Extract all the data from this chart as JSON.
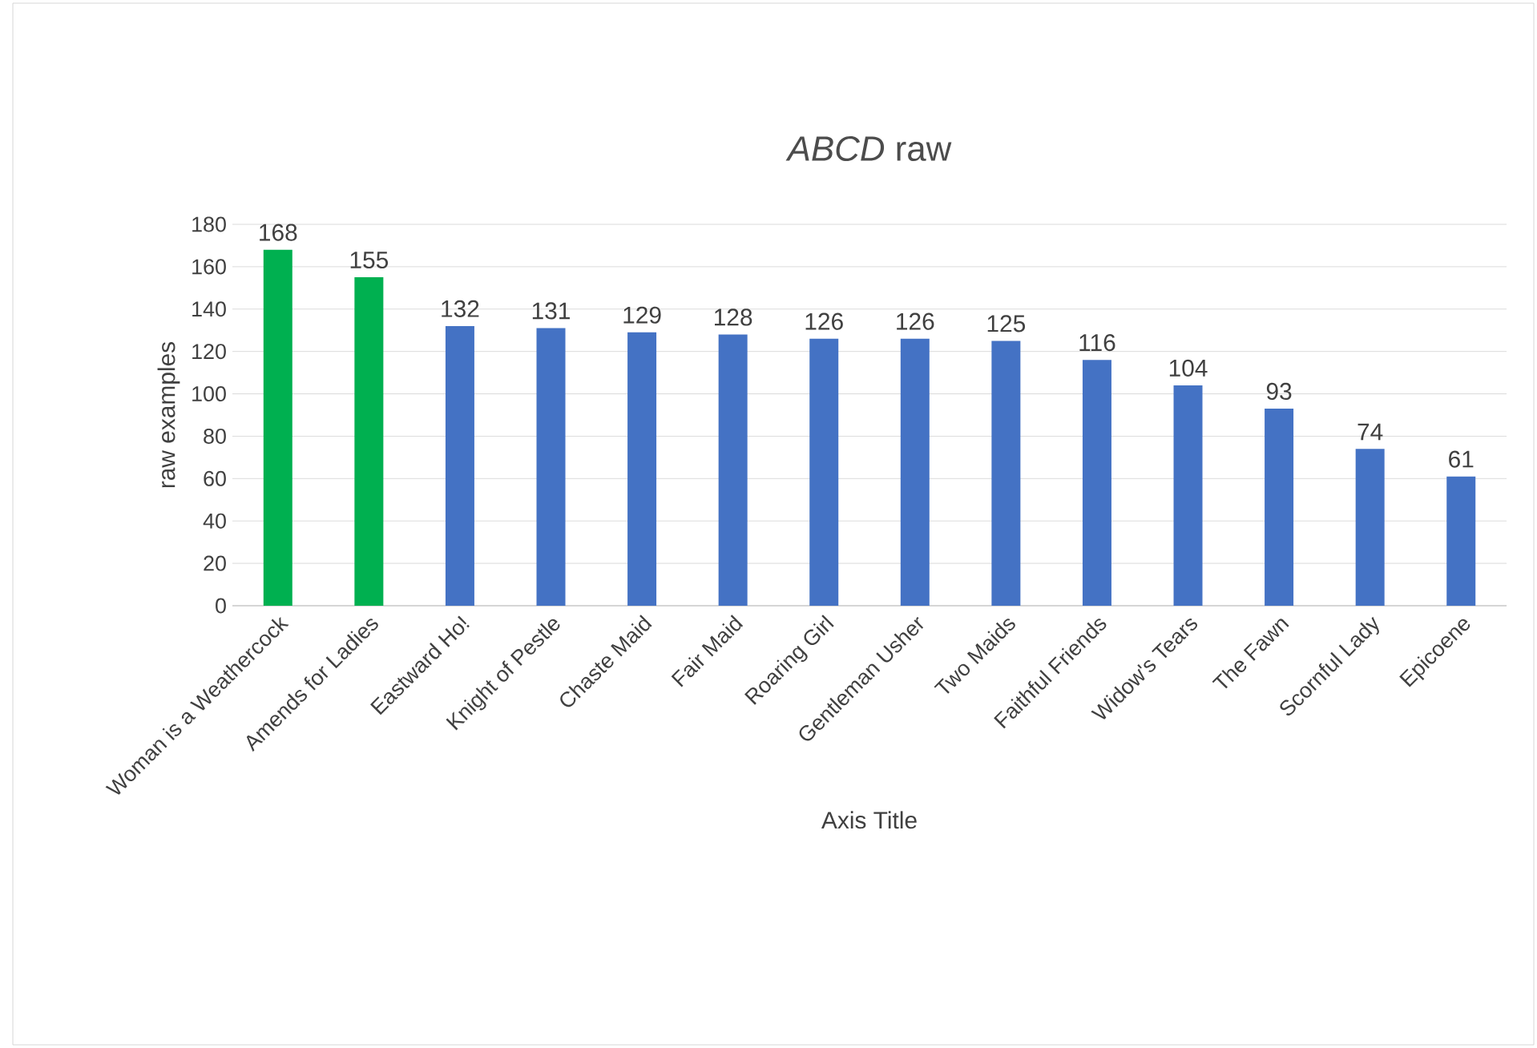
{
  "chart_data": {
    "type": "bar",
    "title": "*ABCD* raw",
    "xlabel": "Axis Title",
    "ylabel": "raw examples",
    "categories": [
      "Woman is a Weathercock",
      "Amends for Ladies",
      "Eastward Ho!",
      "Knight of Pestle",
      "Chaste Maid",
      "Fair Maid",
      "Roaring Girl",
      "Gentleman Usher",
      "Two Maids",
      "Faithful Friends",
      "Widow's Tears",
      "The Fawn",
      "Scornful Lady",
      "Epicoene"
    ],
    "values": [
      168,
      155,
      132,
      131,
      129,
      128,
      126,
      126,
      125,
      116,
      104,
      93,
      74,
      61
    ],
    "colors": [
      "#00b050",
      "#00b050",
      "#4472c4",
      "#4472c4",
      "#4472c4",
      "#4472c4",
      "#4472c4",
      "#4472c4",
      "#4472c4",
      "#4472c4",
      "#4472c4",
      "#4472c4",
      "#4472c4",
      "#4472c4"
    ],
    "ylim": [
      0,
      180
    ],
    "yticks": [
      0,
      20,
      40,
      60,
      80,
      100,
      120,
      140,
      160,
      180
    ],
    "grid": "y",
    "data_labels": true
  }
}
